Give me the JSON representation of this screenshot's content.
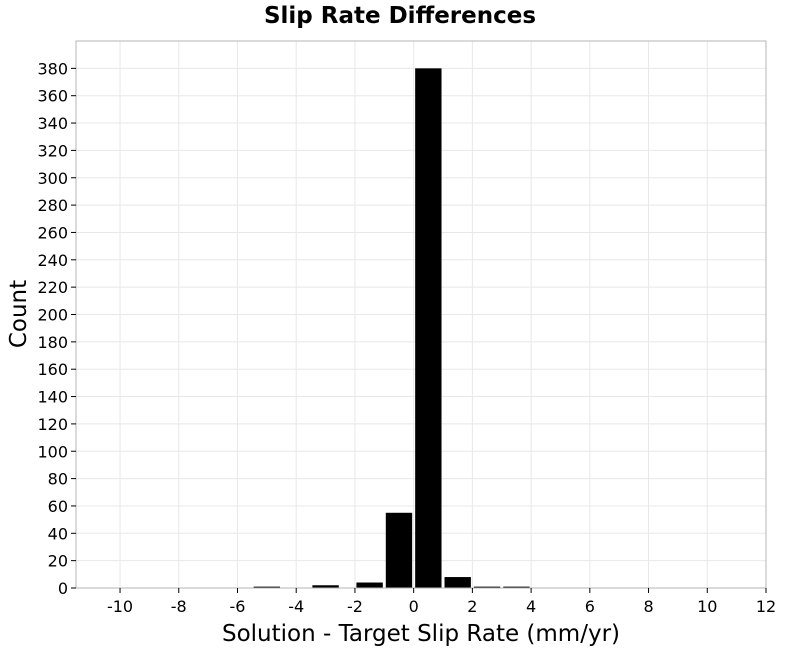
{
  "chart_data": {
    "type": "bar",
    "title": "Slip Rate Differences",
    "xlabel": "Solution - Target Slip Rate (mm/yr)",
    "ylabel": "Count",
    "xlim": [
      -11.5,
      12
    ],
    "ylim": [
      0,
      400
    ],
    "xticks": [
      -10,
      -8,
      -6,
      -4,
      -2,
      0,
      2,
      4,
      6,
      8,
      10,
      12
    ],
    "yticks": [
      0,
      20,
      40,
      60,
      80,
      100,
      120,
      140,
      160,
      180,
      200,
      220,
      240,
      260,
      280,
      300,
      320,
      340,
      360,
      380
    ],
    "bin_width": 1,
    "grid": true,
    "bars": [
      {
        "x": -5,
        "count": 1
      },
      {
        "x": -3,
        "count": 2
      },
      {
        "x": -1.5,
        "count": 4
      },
      {
        "x": -0.5,
        "count": 55
      },
      {
        "x": 0.5,
        "count": 380
      },
      {
        "x": 1.5,
        "count": 8
      },
      {
        "x": 2.5,
        "count": 1
      },
      {
        "x": 3.5,
        "count": 1
      }
    ],
    "bar_color": "#000000"
  }
}
